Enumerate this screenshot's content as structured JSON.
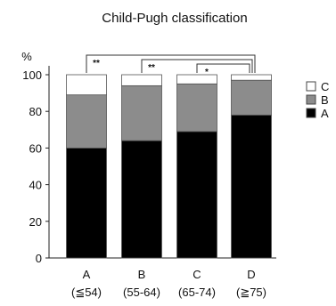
{
  "chart_data": {
    "type": "bar",
    "stacked": true,
    "title": "Child-Pugh classification",
    "ylabel": "%",
    "ylim": [
      0,
      100
    ],
    "yticks": [
      0,
      20,
      40,
      60,
      80,
      100
    ],
    "categories": [
      "A",
      "B",
      "C",
      "D"
    ],
    "category_sublabels": [
      "(≦54)",
      "(55-64)",
      "(65-74)",
      "(≧75)"
    ],
    "series": [
      {
        "name": "A",
        "color": "#000000",
        "values": [
          60,
          64,
          69,
          78
        ]
      },
      {
        "name": "B",
        "color": "#8c8c8c",
        "values": [
          29,
          30,
          26,
          19
        ]
      },
      {
        "name": "C",
        "color": "#ffffff",
        "values": [
          11,
          6,
          5,
          3
        ]
      }
    ],
    "legend_placement": "right",
    "significance": [
      {
        "from": "A",
        "to": "D",
        "label": "**"
      },
      {
        "from": "B",
        "to": "D",
        "label": "**"
      },
      {
        "from": "C",
        "to": "D",
        "label": "*"
      }
    ],
    "grid": false
  }
}
